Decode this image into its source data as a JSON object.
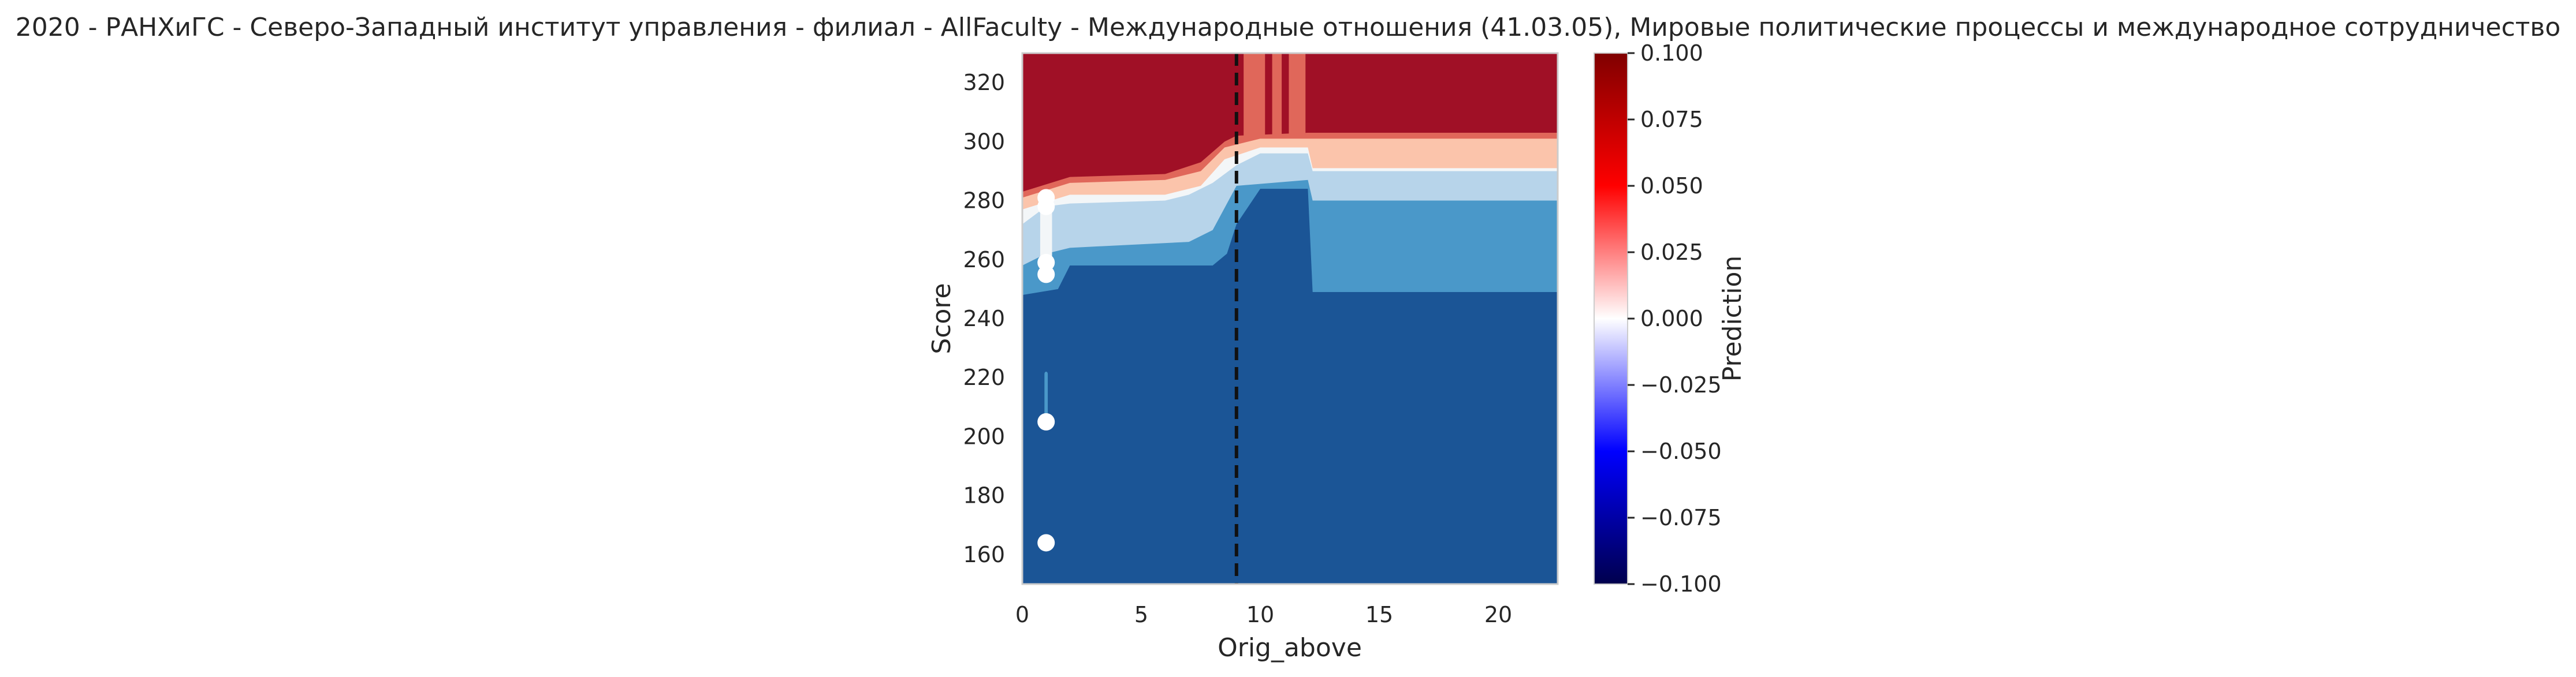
{
  "chart_data": {
    "type": "heatmap",
    "title": "2020 - РАНХиГС - Северо-Западный институт управления - филиал - AllFaculty - Международные отношения (41.03.05), Мировые политические процессы и международное сотрудничество",
    "xlabel": "Orig_above",
    "ylabel": "Score",
    "xlim": [
      0,
      22.5
    ],
    "ylim": [
      150,
      330
    ],
    "x_ticks": [
      0,
      5,
      10,
      15,
      20
    ],
    "y_ticks": [
      160,
      180,
      200,
      220,
      240,
      260,
      280,
      300,
      320
    ],
    "colorbar": {
      "label": "Prediction",
      "range": [
        -0.1,
        0.1
      ],
      "ticks": [
        "0.100",
        "0.075",
        "0.050",
        "0.025",
        "0.000",
        "−0.025",
        "−0.050",
        "−0.075",
        "−0.100"
      ],
      "colormap": "seismic"
    },
    "threshold_line": {
      "x": 9,
      "style": "dashed"
    },
    "points": [
      {
        "x": 1,
        "y": 281
      },
      {
        "x": 1,
        "y": 278
      },
      {
        "x": 1,
        "y": 259
      },
      {
        "x": 1,
        "y": 255
      },
      {
        "x": 1,
        "y": 205
      },
      {
        "x": 1,
        "y": 164
      }
    ],
    "level_colors": {
      "dark_blue": "#1b5596",
      "mid_blue": "#4a98c9",
      "light_blue": "#b7d4ea",
      "white": "#f3f6f8",
      "light_red": "#fbc4ab",
      "mid_red": "#e0675a",
      "dark_red": "#a01026"
    },
    "grid": false
  }
}
